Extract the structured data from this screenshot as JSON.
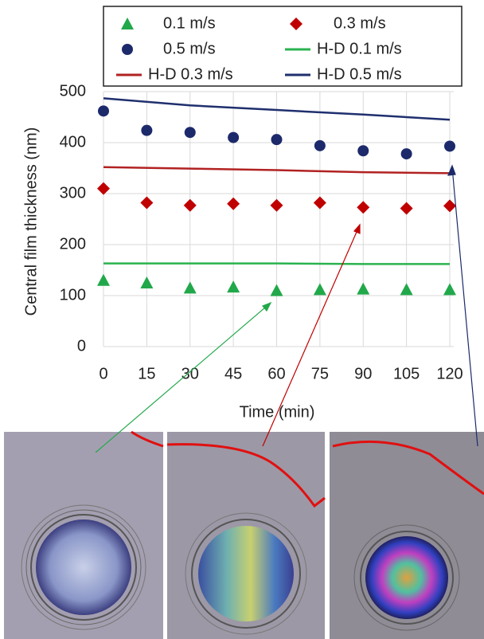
{
  "chart_data": {
    "type": "scatter",
    "x_label": "Time (min)",
    "y_label": "Central film thickness  (nm)",
    "xlim": [
      0,
      120
    ],
    "xticks": [
      0,
      15,
      30,
      45,
      60,
      75,
      90,
      105,
      120
    ],
    "ylim": [
      0,
      500
    ],
    "yticks": [
      0,
      100,
      200,
      300,
      400,
      500
    ],
    "grid": true,
    "legend": "top",
    "series": [
      {
        "name": "0.1 m/s",
        "color": "#21a84a",
        "marker": "triangle",
        "x": [
          0,
          15,
          30,
          45,
          60,
          75,
          90,
          105,
          120
        ],
        "values": [
          130,
          125,
          115,
          117,
          110,
          112,
          113,
          112,
          112
        ]
      },
      {
        "name": "0.3 m/s",
        "color": "#c00000",
        "marker": "diamond",
        "x": [
          0,
          15,
          30,
          45,
          60,
          75,
          90,
          105,
          120
        ],
        "values": [
          310,
          282,
          277,
          280,
          277,
          282,
          273,
          271,
          276
        ]
      },
      {
        "name": "0.5 m/s",
        "color": "#1c2a6b",
        "marker": "circle",
        "x": [
          0,
          15,
          30,
          45,
          60,
          75,
          90,
          105,
          120
        ],
        "values": [
          462,
          424,
          420,
          410,
          406,
          394,
          384,
          378,
          393
        ]
      },
      {
        "name": "H-D 0.1 m/s",
        "color": "#2ab34f",
        "marker": "line",
        "x": [
          0,
          30,
          60,
          90,
          120
        ],
        "values": [
          163,
          163,
          163,
          162,
          162
        ]
      },
      {
        "name": "H-D 0.3 m/s",
        "color": "#b22222",
        "marker": "line",
        "x": [
          0,
          30,
          60,
          90,
          120
        ],
        "values": [
          352,
          349,
          346,
          342,
          340
        ]
      },
      {
        "name": "H-D 0.5 m/s",
        "color": "#1f2f6e",
        "marker": "line",
        "x": [
          0,
          30,
          60,
          90,
          120
        ],
        "values": [
          487,
          473,
          464,
          455,
          445
        ]
      }
    ]
  }
}
